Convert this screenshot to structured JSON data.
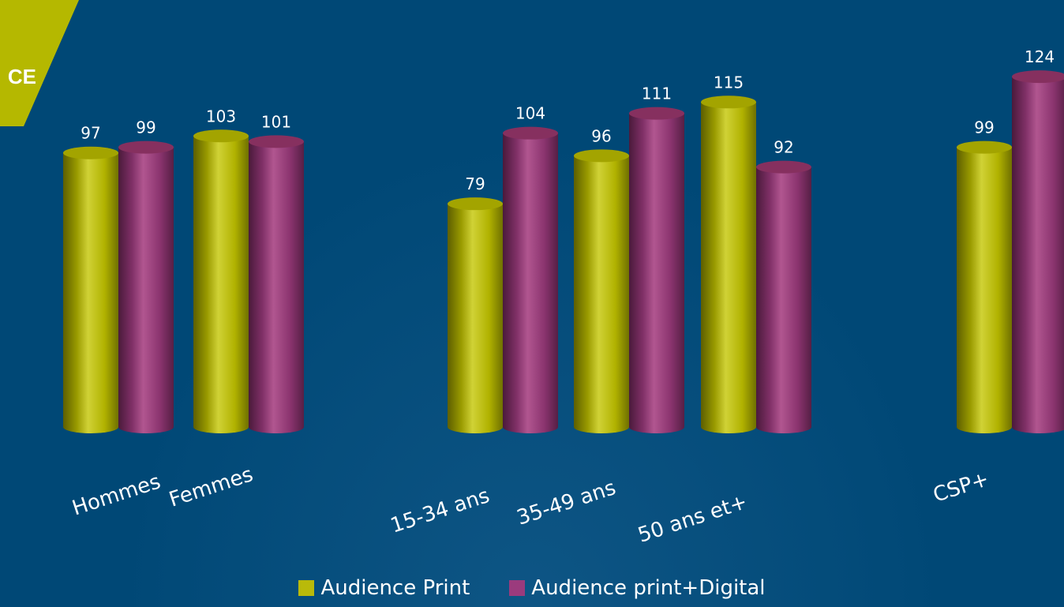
{
  "corner_tab": {
    "text": "CE"
  },
  "chart_data": {
    "type": "bar",
    "categories": [
      "Hommes",
      "Femmes",
      "15-34 ans",
      "35-49 ans",
      "50 ans et+",
      "CSP+"
    ],
    "series": [
      {
        "name": "Audience Print",
        "color": "#b9ba0a",
        "values": [
          97,
          103,
          79,
          96,
          115,
          99
        ]
      },
      {
        "name": "Audience print+Digital",
        "color": "#9b3b7d",
        "values": [
          99,
          101,
          104,
          111,
          92,
          124
        ]
      }
    ],
    "ylim": [
      0,
      130
    ],
    "grid": false,
    "legend": "bottom",
    "title": "",
    "xlabel": "",
    "ylabel": ""
  },
  "legend": {
    "items": [
      {
        "label": "Audience Print",
        "color": "#b9ba0a"
      },
      {
        "label": "Audience print+Digital",
        "color": "#9b3b7d"
      }
    ]
  }
}
